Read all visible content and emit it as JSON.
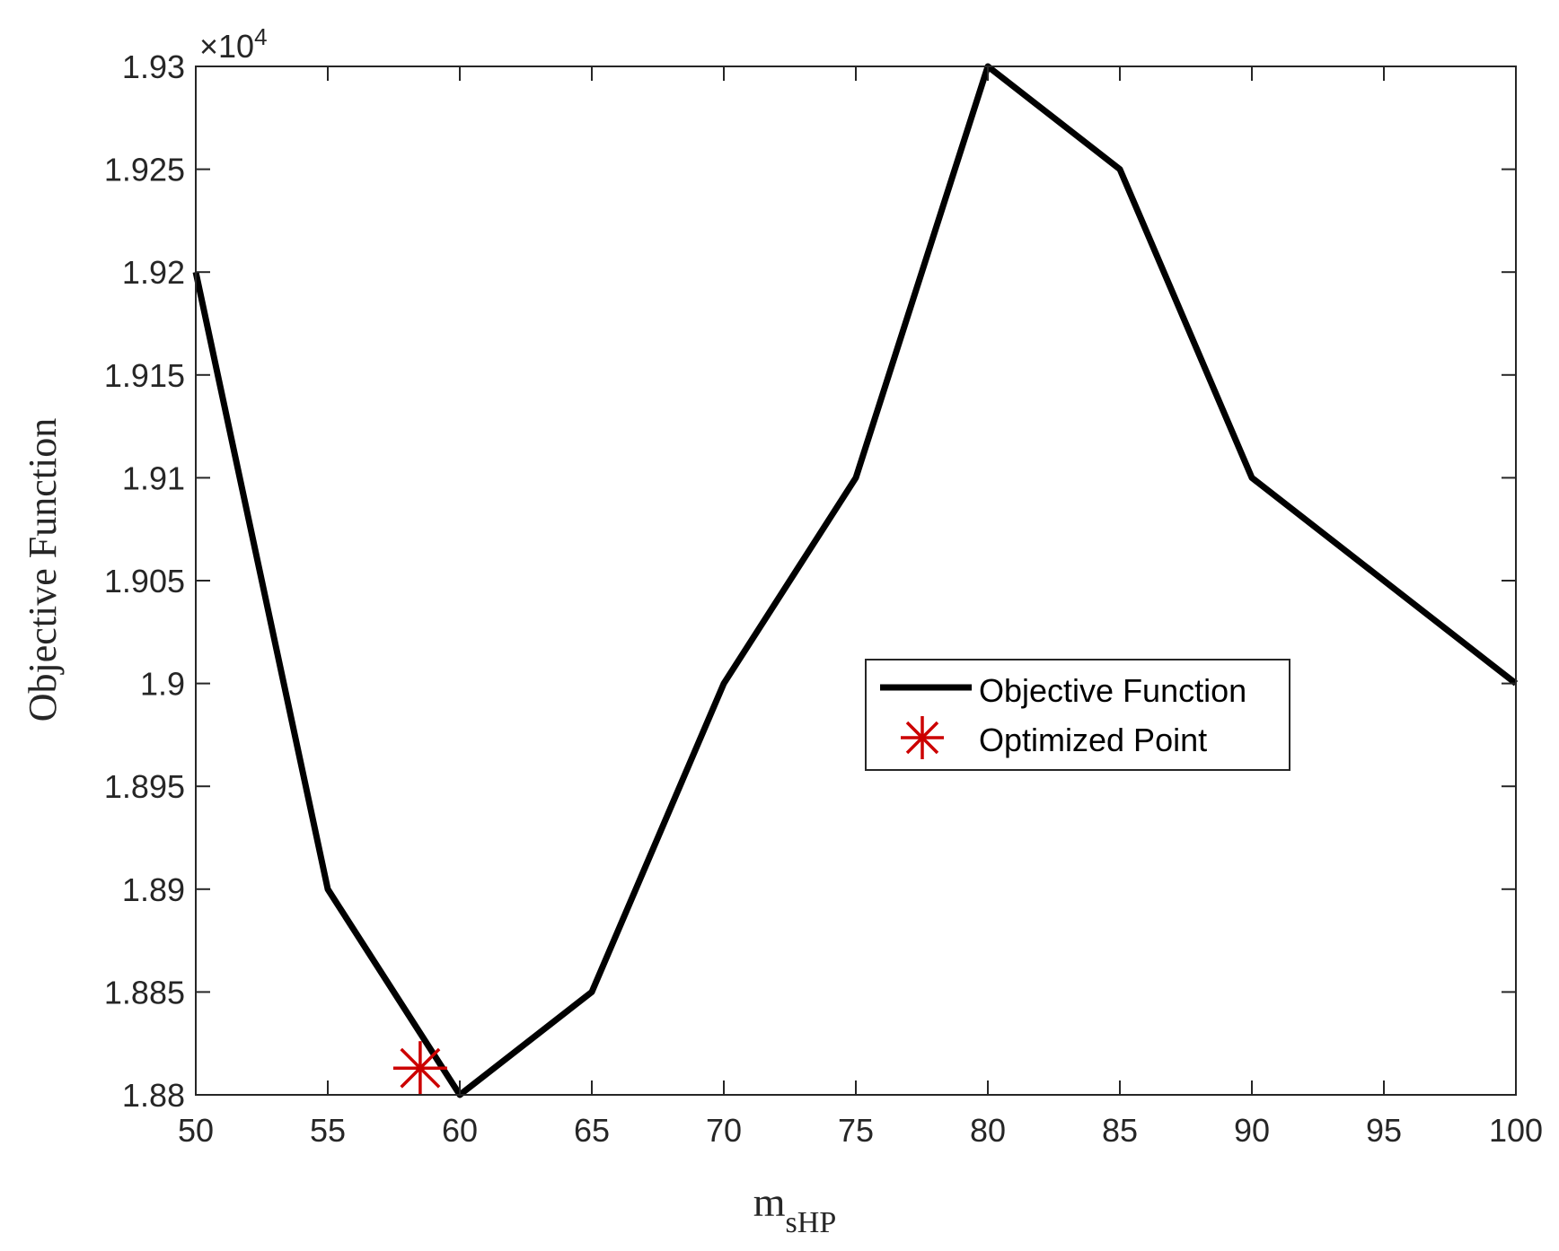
{
  "chart_data": {
    "type": "line",
    "xlabel_main": "m",
    "xlabel_sub": "sHP",
    "ylabel": "Objective Function",
    "y_exponent_prefix": "×10",
    "y_exponent_power": "4",
    "xlim": [
      50,
      100
    ],
    "ylim": [
      18800,
      19300
    ],
    "xticks": [
      50,
      55,
      60,
      65,
      70,
      75,
      80,
      85,
      90,
      95,
      100
    ],
    "xtick_labels": [
      "50",
      "55",
      "60",
      "65",
      "70",
      "75",
      "80",
      "85",
      "90",
      "95",
      "100"
    ],
    "yticks": [
      18800,
      18850,
      18900,
      18950,
      19000,
      19050,
      19100,
      19150,
      19200,
      19250,
      19300
    ],
    "ytick_labels": [
      "1.88",
      "1.885",
      "1.89",
      "1.895",
      "1.9",
      "1.905",
      "1.91",
      "1.915",
      "1.92",
      "1.925",
      "1.93"
    ],
    "grid": false,
    "legend_position": "center-right",
    "series": [
      {
        "name": "Objective Function",
        "color": "#000000",
        "x": [
          50,
          55,
          60,
          65,
          70,
          75,
          80,
          85,
          90,
          95,
          100
        ],
        "y": [
          19200,
          18900,
          18800,
          18850,
          19000,
          19100,
          19300,
          19250,
          19100,
          19050,
          19000
        ]
      },
      {
        "name": "Optimized Point",
        "color": "#cc0000",
        "marker": "asterisk",
        "x": [
          58.5
        ],
        "y": [
          18813
        ]
      }
    ]
  }
}
